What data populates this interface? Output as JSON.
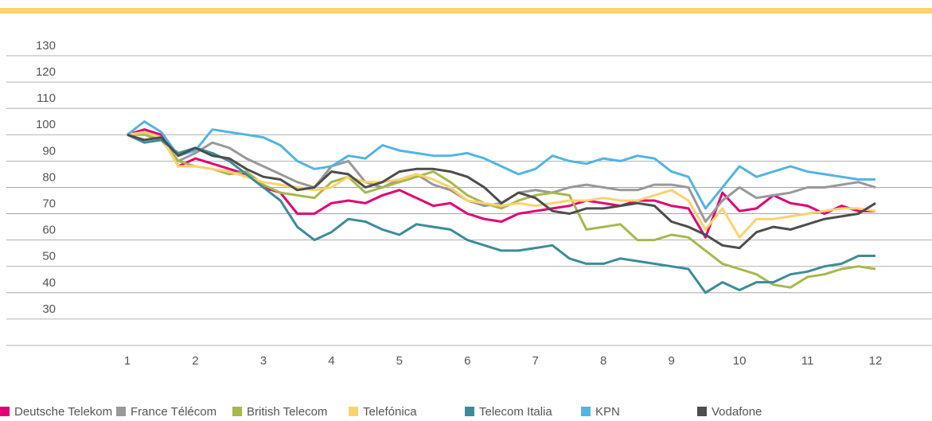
{
  "chart_data": {
    "type": "line",
    "x": [
      1,
      1.25,
      1.5,
      1.75,
      2,
      2.25,
      2.5,
      2.75,
      3,
      3.25,
      3.5,
      3.75,
      4,
      4.25,
      4.5,
      4.75,
      5,
      5.25,
      5.5,
      5.75,
      6,
      6.25,
      6.5,
      6.75,
      7,
      7.25,
      7.5,
      7.75,
      8,
      8.25,
      8.5,
      8.75,
      9,
      9.25,
      9.5,
      9.75,
      10,
      10.25,
      10.5,
      10.75,
      11,
      11.25,
      11.5,
      11.75,
      12
    ],
    "xlim": [
      1,
      12
    ],
    "xticks": [
      1,
      2,
      3,
      4,
      5,
      6,
      7,
      8,
      9,
      10,
      11,
      12
    ],
    "ylim": [
      20,
      130
    ],
    "yticks": [
      30,
      40,
      50,
      60,
      70,
      80,
      90,
      100,
      110,
      120,
      130
    ],
    "grid": true,
    "series": [
      {
        "name": "Deutsche Telekom",
        "color": "#e20074",
        "values": [
          100,
          102,
          100,
          88,
          91,
          89,
          87,
          85,
          80,
          78,
          70,
          70,
          74,
          75,
          74,
          77,
          79,
          76,
          73,
          74,
          70,
          68,
          67,
          70,
          71,
          72,
          73,
          75,
          74,
          73,
          75,
          75,
          73,
          72,
          61,
          78,
          71,
          72,
          77,
          74,
          73,
          70,
          73,
          71,
          71
        ]
      },
      {
        "name": "France Télécom",
        "color": "#999999",
        "values": [
          100,
          101,
          99,
          90,
          93,
          97,
          95,
          91,
          88,
          85,
          82,
          80,
          88,
          90,
          82,
          80,
          83,
          85,
          81,
          79,
          75,
          73,
          74,
          78,
          79,
          78,
          80,
          81,
          80,
          79,
          79,
          81,
          81,
          80,
          67,
          75,
          80,
          76,
          77,
          78,
          80,
          80,
          81,
          82,
          80
        ]
      },
      {
        "name": "British Telecom",
        "color": "#a8b84c",
        "values": [
          100,
          100,
          98,
          90,
          88,
          87,
          85,
          86,
          81,
          78,
          77,
          76,
          82,
          84,
          78,
          80,
          82,
          84,
          86,
          82,
          77,
          74,
          72,
          75,
          77,
          78,
          77,
          64,
          65,
          66,
          60,
          60,
          62,
          61,
          56,
          51,
          49,
          47,
          43,
          42,
          46,
          47,
          49,
          50,
          49
        ]
      },
      {
        "name": "Telefónica",
        "color": "#fdd26e",
        "values": [
          100,
          101,
          99,
          88,
          88,
          87,
          86,
          84,
          82,
          81,
          80,
          79,
          80,
          84,
          82,
          82,
          83,
          85,
          83,
          80,
          75,
          74,
          73,
          74,
          73,
          74,
          75,
          75,
          76,
          75,
          75,
          77,
          79,
          75,
          64,
          72,
          61,
          68,
          68,
          69,
          70,
          71,
          72,
          72,
          71
        ]
      },
      {
        "name": "Telecom Italia",
        "color": "#3c8c98",
        "values": [
          100,
          97,
          98,
          93,
          95,
          93,
          90,
          85,
          80,
          75,
          65,
          60,
          63,
          68,
          67,
          64,
          62,
          66,
          65,
          64,
          60,
          58,
          56,
          56,
          57,
          58,
          53,
          51,
          51,
          53,
          52,
          51,
          50,
          49,
          40,
          44,
          41,
          44,
          44,
          47,
          48,
          50,
          51,
          54,
          54
        ]
      },
      {
        "name": "KPN",
        "color": "#53b4e4",
        "values": [
          100,
          105,
          101,
          92,
          94,
          102,
          101,
          100,
          99,
          96,
          90,
          87,
          88,
          92,
          91,
          96,
          94,
          93,
          92,
          92,
          93,
          91,
          88,
          85,
          87,
          92,
          90,
          89,
          91,
          90,
          92,
          91,
          86,
          84,
          72,
          80,
          88,
          84,
          86,
          88,
          86,
          85,
          84,
          83,
          83
        ]
      },
      {
        "name": "Vodafone",
        "color": "#4d4d4d",
        "values": [
          100,
          98,
          99,
          92,
          95,
          92,
          91,
          87,
          84,
          83,
          79,
          80,
          86,
          85,
          80,
          82,
          86,
          87,
          87,
          86,
          84,
          80,
          74,
          78,
          76,
          71,
          70,
          72,
          72,
          73,
          74,
          73,
          67,
          65,
          62,
          58,
          57,
          63,
          65,
          64,
          66,
          68,
          69,
          70,
          74
        ]
      }
    ]
  }
}
